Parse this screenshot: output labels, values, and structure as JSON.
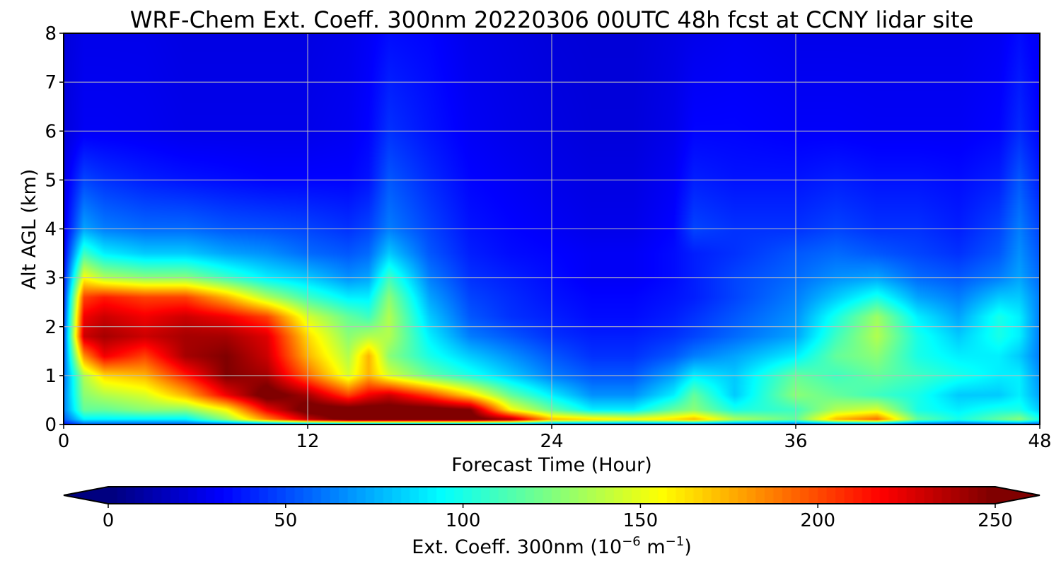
{
  "chart_data": {
    "type": "heatmap",
    "title": "WRF-Chem Ext. Coeff. 300nm  20220306 00UTC 48h fcst at CCNY lidar site",
    "xlabel": "Forecast Time (Hour)",
    "ylabel": "Alt AGL (km)",
    "xlim": [
      0,
      48
    ],
    "ylim": [
      0,
      8
    ],
    "xticks": [
      "0",
      "12",
      "24",
      "36",
      "48"
    ],
    "yticks": [
      "0",
      "1",
      "2",
      "3",
      "4",
      "5",
      "6",
      "7",
      "8"
    ],
    "grid": true,
    "colormap": "jet",
    "colorbar": {
      "label": "Ext. Coeff. 300nm  (10",
      "label_exp1": "−6",
      "label_mid": " m",
      "label_exp2": "−1",
      "label_end": ")",
      "range": [
        0,
        250
      ],
      "ticks": [
        "0",
        "50",
        "100",
        "150",
        "200",
        "250"
      ],
      "extend": "both",
      "orientation": "horizontal"
    },
    "x": [
      0,
      1,
      2,
      4,
      6,
      8,
      10,
      12,
      14,
      15,
      16,
      18,
      20,
      22,
      24,
      26,
      28,
      30,
      31,
      33,
      36,
      38,
      40,
      42,
      44,
      46,
      47,
      48
    ],
    "y": [
      0,
      0.1,
      0.3,
      0.6,
      1.0,
      1.4,
      1.8,
      2.2,
      2.6,
      3.0,
      3.5,
      4.0,
      5.0,
      6.0,
      8.0
    ],
    "z": [
      [
        20,
        40,
        40,
        40,
        40,
        40,
        40,
        40,
        40,
        40,
        40,
        40,
        40,
        40,
        40,
        40,
        40,
        40,
        40,
        40,
        40,
        40,
        40,
        40,
        40,
        40,
        40,
        40
      ],
      [
        40,
        80,
        80,
        80,
        80,
        120,
        180,
        230,
        260,
        260,
        260,
        260,
        260,
        240,
        170,
        160,
        150,
        160,
        170,
        130,
        110,
        170,
        190,
        110,
        90,
        110,
        120,
        90
      ],
      [
        50,
        110,
        110,
        120,
        120,
        150,
        220,
        260,
        260,
        260,
        260,
        260,
        250,
        150,
        110,
        80,
        80,
        110,
        120,
        90,
        100,
        130,
        140,
        90,
        80,
        90,
        90,
        70
      ],
      [
        50,
        120,
        130,
        140,
        170,
        220,
        260,
        240,
        200,
        220,
        230,
        200,
        160,
        110,
        80,
        55,
        55,
        80,
        110,
        70,
        120,
        110,
        100,
        90,
        70,
        70,
        80,
        60
      ],
      [
        45,
        130,
        160,
        170,
        210,
        250,
        240,
        190,
        140,
        170,
        140,
        110,
        90,
        70,
        50,
        40,
        40,
        60,
        80,
        70,
        110,
        100,
        110,
        100,
        90,
        80,
        80,
        55
      ],
      [
        40,
        180,
        220,
        200,
        240,
        250,
        230,
        170,
        130,
        170,
        120,
        90,
        70,
        55,
        40,
        30,
        30,
        40,
        50,
        60,
        80,
        110,
        120,
        90,
        80,
        80,
        70,
        50
      ],
      [
        35,
        230,
        240,
        230,
        240,
        240,
        225,
        160,
        120,
        130,
        130,
        80,
        50,
        40,
        30,
        25,
        25,
        30,
        35,
        45,
        60,
        100,
        130,
        90,
        70,
        90,
        80,
        50
      ],
      [
        30,
        220,
        230,
        220,
        230,
        220,
        200,
        140,
        110,
        100,
        130,
        70,
        40,
        30,
        25,
        20,
        20,
        25,
        30,
        40,
        55,
        90,
        125,
        80,
        60,
        90,
        80,
        50
      ],
      [
        25,
        200,
        210,
        200,
        200,
        170,
        130,
        100,
        80,
        80,
        120,
        60,
        35,
        28,
        22,
        18,
        18,
        22,
        25,
        35,
        50,
        70,
        90,
        60,
        50,
        70,
        70,
        50
      ],
      [
        20,
        150,
        130,
        120,
        120,
        100,
        80,
        70,
        55,
        60,
        100,
        50,
        30,
        25,
        20,
        15,
        15,
        20,
        25,
        35,
        45,
        55,
        60,
        45,
        40,
        50,
        60,
        45
      ],
      [
        15,
        100,
        80,
        70,
        70,
        60,
        55,
        45,
        40,
        45,
        70,
        40,
        25,
        20,
        18,
        15,
        15,
        20,
        25,
        30,
        40,
        45,
        40,
        35,
        30,
        40,
        55,
        40
      ],
      [
        12,
        60,
        50,
        45,
        45,
        40,
        38,
        35,
        30,
        35,
        50,
        35,
        22,
        18,
        15,
        12,
        12,
        18,
        35,
        30,
        30,
        35,
        30,
        30,
        25,
        35,
        50,
        35
      ],
      [
        10,
        35,
        30,
        25,
        22,
        20,
        18,
        18,
        18,
        22,
        40,
        28,
        18,
        15,
        12,
        10,
        10,
        15,
        25,
        22,
        22,
        25,
        22,
        22,
        20,
        25,
        40,
        25
      ],
      [
        8,
        15,
        15,
        14,
        12,
        12,
        12,
        12,
        14,
        18,
        30,
        22,
        15,
        12,
        10,
        8,
        8,
        12,
        18,
        18,
        16,
        16,
        15,
        15,
        15,
        18,
        28,
        18
      ],
      [
        8,
        12,
        12,
        12,
        10,
        10,
        10,
        10,
        12,
        15,
        20,
        18,
        12,
        10,
        8,
        7,
        7,
        10,
        12,
        14,
        12,
        12,
        12,
        12,
        12,
        14,
        20,
        14
      ]
    ]
  }
}
